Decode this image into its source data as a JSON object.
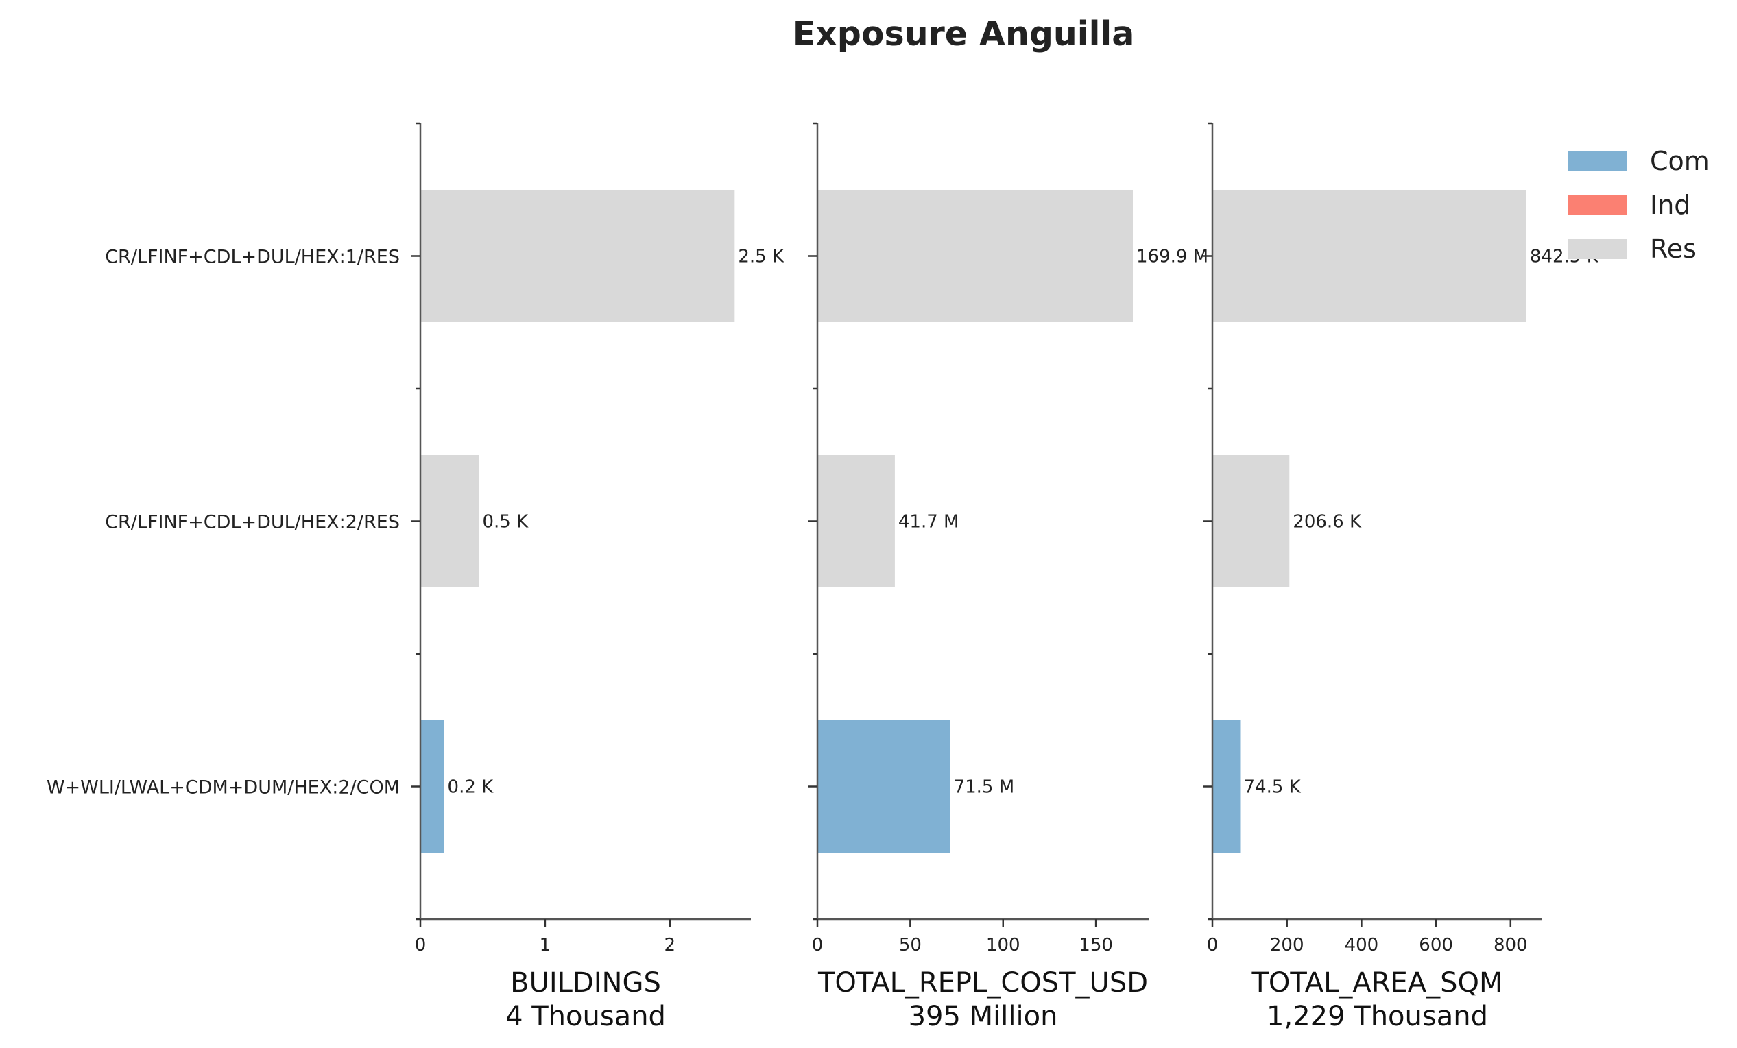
{
  "chart_data": {
    "type": "bar",
    "orientation": "horizontal",
    "title": "Exposure Anguilla",
    "categories": [
      "CR/LFINF+CDL+DUL/HEX:1/RES",
      "CR/LFINF+CDL+DUL/HEX:2/RES",
      "W+WLI/LWAL+CDM+DUM/HEX:2/COM"
    ],
    "category_class": [
      "Res",
      "Res",
      "Com"
    ],
    "legend": {
      "placement": "top-right",
      "entries": [
        {
          "name": "Com",
          "color": "#80b1d3"
        },
        {
          "name": "Ind",
          "color": "#fb8072"
        },
        {
          "name": "Res",
          "color": "#d9d9d9"
        }
      ]
    },
    "panels": [
      {
        "xlabel": "BUILDINGS",
        "xlabel_total": "4 Thousand",
        "values": [
          2.52,
          0.47,
          0.19
        ],
        "value_labels": [
          "2.5 K",
          "0.5 K",
          "0.2 K"
        ],
        "xlim": [
          0,
          2.65
        ],
        "xticks": [
          0,
          1,
          2
        ],
        "xtick_labels": [
          "0",
          "1",
          "2"
        ]
      },
      {
        "xlabel": "TOTAL_REPL_COST_USD",
        "xlabel_total": "395 Million",
        "values": [
          169.9,
          41.7,
          71.5
        ],
        "value_labels": [
          "169.9 M",
          "41.7 M",
          "71.5 M"
        ],
        "xlim": [
          0,
          178.4
        ],
        "xticks": [
          0,
          50,
          100,
          150
        ],
        "xtick_labels": [
          "0",
          "50",
          "100",
          "150"
        ]
      },
      {
        "xlabel": "TOTAL_AREA_SQM",
        "xlabel_total": "1,229 Thousand",
        "values": [
          842.5,
          206.6,
          74.5
        ],
        "value_labels": [
          "842.5 K",
          "206.6 K",
          "74.5 K"
        ],
        "xlim": [
          0,
          885
        ],
        "xticks": [
          0,
          200,
          400,
          600,
          800
        ],
        "xtick_labels": [
          "0",
          "200",
          "400",
          "600",
          "800"
        ]
      }
    ],
    "grid": false
  }
}
